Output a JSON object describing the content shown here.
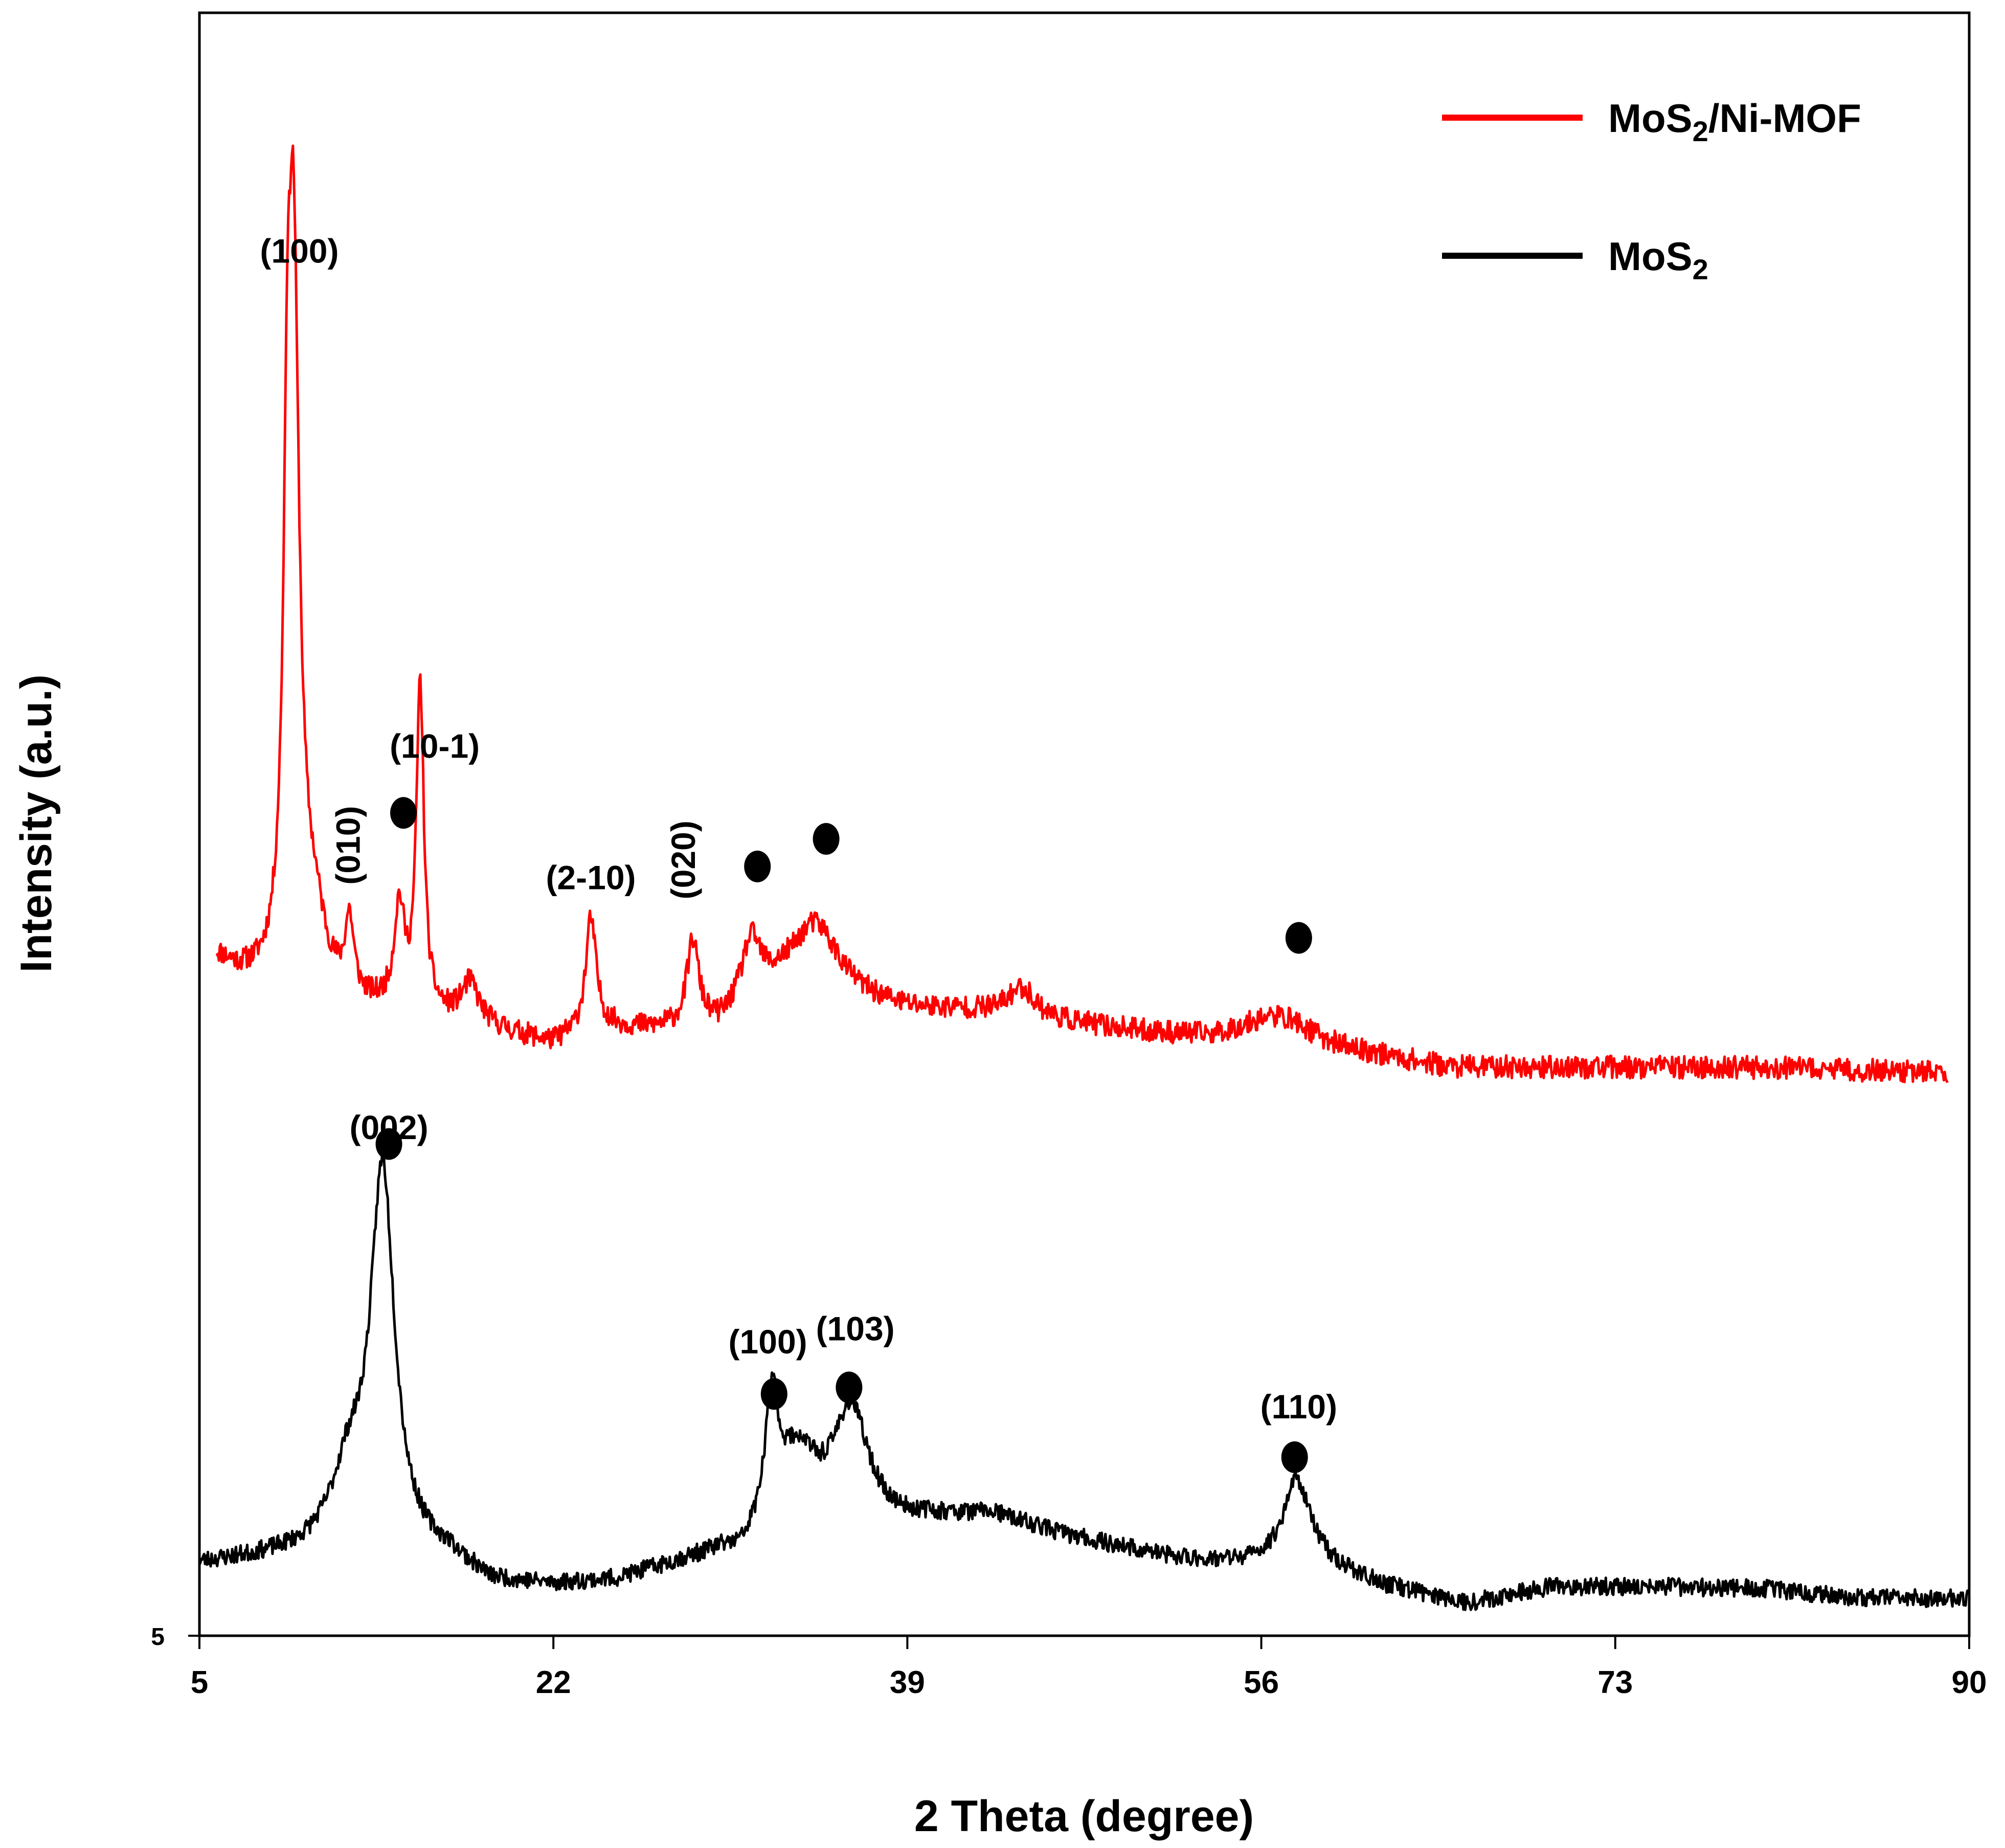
{
  "chart_data": {
    "type": "line",
    "title": "",
    "xlabel": "2 Theta (degree)",
    "ylabel": "Intensity (a.u.)",
    "xlim": [
      5,
      90
    ],
    "ylim": [
      0,
      100
    ],
    "xticks": [
      "5",
      "22",
      "39",
      "56",
      "73",
      "90"
    ],
    "yticks": [
      "5"
    ],
    "grid": false,
    "legend_position": "top-right",
    "colors": {
      "red": "#ff0000",
      "black": "#000000"
    },
    "legend": [
      {
        "name": "MoS2/Ni-MOF",
        "base": "MoS",
        "sub": "2",
        "rest": "/Ni-MOF",
        "color": "#ff0000"
      },
      {
        "name": "MoS2",
        "base": "MoS",
        "sub": "2",
        "rest": "",
        "color": "#000000"
      }
    ],
    "series": [
      {
        "name": "MoS2/Ni-MOF",
        "color": "#ff0000",
        "x0": 5.8,
        "x1": 89.0,
        "baseline": [
          [
            5.8,
            41.7
          ],
          [
            7.0,
            40.5
          ],
          [
            8.5,
            39.5
          ],
          [
            13.0,
            38.5
          ],
          [
            18.0,
            37.7
          ],
          [
            20.0,
            37.0
          ],
          [
            22.0,
            36.4
          ],
          [
            24.0,
            37.4
          ],
          [
            27.0,
            37.2
          ],
          [
            30.0,
            37.2
          ],
          [
            33.0,
            39.5
          ],
          [
            36.0,
            39.0
          ],
          [
            39.0,
            38.5
          ],
          [
            42.0,
            38.4
          ],
          [
            46.0,
            37.8
          ],
          [
            50.0,
            37.2
          ],
          [
            53.5,
            36.8
          ],
          [
            56.0,
            37.1
          ],
          [
            58.0,
            36.2
          ],
          [
            62.0,
            35.6
          ],
          [
            65.0,
            35.0
          ],
          [
            70.0,
            35.0
          ],
          [
            80.0,
            35.0
          ],
          [
            89.0,
            34.7
          ]
        ],
        "peaks": [
          [
            9.5,
            46.0,
            0.35
          ],
          [
            9.2,
            17.0,
            0.18
          ],
          [
            10.5,
            4.0,
            0.7
          ],
          [
            12.2,
            4.6,
            0.25
          ],
          [
            14.6,
            6.2,
            0.3
          ],
          [
            15.6,
            20.0,
            0.22
          ],
          [
            18.0,
            2.3,
            0.5
          ],
          [
            23.8,
            6.7,
            0.3
          ],
          [
            28.7,
            5.3,
            0.35
          ],
          [
            31.5,
            4.0,
            0.6
          ],
          [
            34.6,
            4.5,
            1.4
          ],
          [
            44.5,
            1.8,
            0.8
          ],
          [
            57.3,
            1.5,
            1.8
          ]
        ],
        "noise": 0.7,
        "seed": 11
      },
      {
        "name": "MoS2",
        "color": "#000000",
        "x0": 5.0,
        "x1": 90.0,
        "baseline": [
          [
            5.0,
            4.4
          ],
          [
            10.0,
            5.0
          ],
          [
            12.0,
            5.5
          ],
          [
            15.0,
            5.0
          ],
          [
            17.0,
            4.7
          ],
          [
            19.0,
            3.2
          ],
          [
            22.0,
            3.0
          ],
          [
            25.0,
            3.3
          ],
          [
            28.0,
            4.3
          ],
          [
            30.0,
            4.8
          ],
          [
            31.0,
            4.5
          ],
          [
            32.0,
            5.5
          ],
          [
            37.0,
            6.0
          ],
          [
            40.0,
            7.0
          ],
          [
            43.0,
            7.4
          ],
          [
            47.0,
            6.0
          ],
          [
            52.0,
            4.7
          ],
          [
            55.0,
            4.4
          ],
          [
            59.0,
            4.2
          ],
          [
            62.0,
            3.0
          ],
          [
            66.0,
            2.0
          ],
          [
            70.0,
            3.0
          ],
          [
            75.0,
            3.0
          ],
          [
            80.0,
            2.9
          ],
          [
            85.0,
            2.3
          ],
          [
            90.0,
            2.3
          ]
        ],
        "peaks": [
          [
            13.8,
            23.0,
            0.7
          ],
          [
            12.2,
            4.0,
            1.0
          ],
          [
            32.5,
            7.6,
            0.35
          ],
          [
            33.7,
            5.0,
            1.2
          ],
          [
            36.3,
            7.5,
            1.1
          ],
          [
            57.7,
            5.4,
            0.8
          ]
        ],
        "noise": 0.55,
        "seed": 23
      }
    ],
    "annotations": [
      {
        "label": "(100)",
        "x": 9.8,
        "y": 84.6,
        "rotate": false,
        "dot": false
      },
      {
        "label": "(10-1)",
        "x": 16.3,
        "y": 54.1,
        "rotate": false,
        "dot": false
      },
      {
        "label": "(010)",
        "x": 12.7,
        "y": 48.7,
        "rotate": true,
        "dot": false
      },
      {
        "label": "(2-10)",
        "x": 23.8,
        "y": 46.0,
        "rotate": false,
        "dot": false
      },
      {
        "label": "(020)",
        "x": 28.8,
        "y": 47.8,
        "rotate": true,
        "dot": false
      },
      {
        "label": "(002)",
        "x": 14.1,
        "y": 30.6,
        "rotate": false,
        "dot": false
      },
      {
        "label": "(100)",
        "x": 32.3,
        "y": 17.4,
        "rotate": false,
        "dot": false
      },
      {
        "label": "(103)",
        "x": 36.5,
        "y": 18.2,
        "rotate": false,
        "dot": false
      },
      {
        "label": "(110)",
        "x": 57.8,
        "y": 13.4,
        "rotate": false,
        "dot": false
      },
      {
        "label": "",
        "x": 14.8,
        "y": 50.7,
        "rotate": false,
        "dot": true
      },
      {
        "label": "",
        "x": 31.8,
        "y": 47.4,
        "rotate": false,
        "dot": true
      },
      {
        "label": "",
        "x": 35.1,
        "y": 49.1,
        "rotate": false,
        "dot": true
      },
      {
        "label": "",
        "x": 57.8,
        "y": 43.0,
        "rotate": false,
        "dot": true
      },
      {
        "label": "",
        "x": 14.1,
        "y": 30.3,
        "rotate": false,
        "dot": true
      },
      {
        "label": "",
        "x": 32.6,
        "y": 14.9,
        "rotate": false,
        "dot": true
      },
      {
        "label": "",
        "x": 36.2,
        "y": 15.3,
        "rotate": false,
        "dot": true
      },
      {
        "label": "",
        "x": 57.6,
        "y": 11.0,
        "rotate": false,
        "dot": true
      }
    ]
  }
}
